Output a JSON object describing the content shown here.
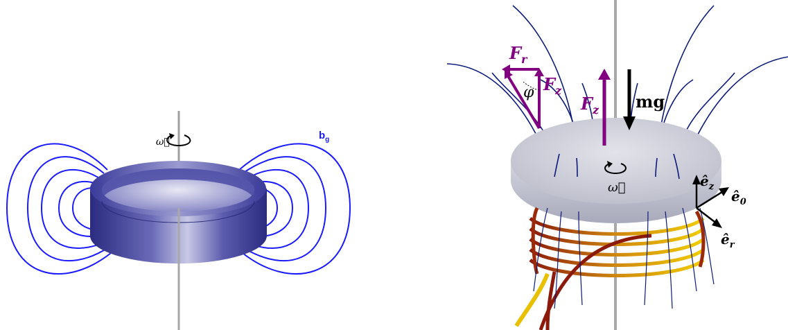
{
  "left_panel": {
    "omega_label": "ω⃗",
    "field_label_main": "b",
    "field_label_sub": "g"
  },
  "right_panel": {
    "force_r_main": "F",
    "force_r_sub": "r",
    "force_z_small_main": "F",
    "force_z_small_sub": "z",
    "phi_label": "φ",
    "force_z_main": "F",
    "force_z_sub": "z",
    "weight_label": "mg",
    "omega_label": "ω⃗",
    "ez_main": "ê",
    "ez_sub": "z",
    "e0_main": "ê",
    "e0_sub": "0",
    "er_main": "ê",
    "er_sub": "r"
  },
  "colors": {
    "field_lines_left": "#1a1aff",
    "field_lines_right": "#0b1a7a",
    "ring": "#3a3a9a",
    "force_arrows": "#800080",
    "weight_arrow": "#000000",
    "disk": "#c9cad6",
    "coil_light": "#e8c000",
    "coil_dark": "#8b1a0a"
  }
}
